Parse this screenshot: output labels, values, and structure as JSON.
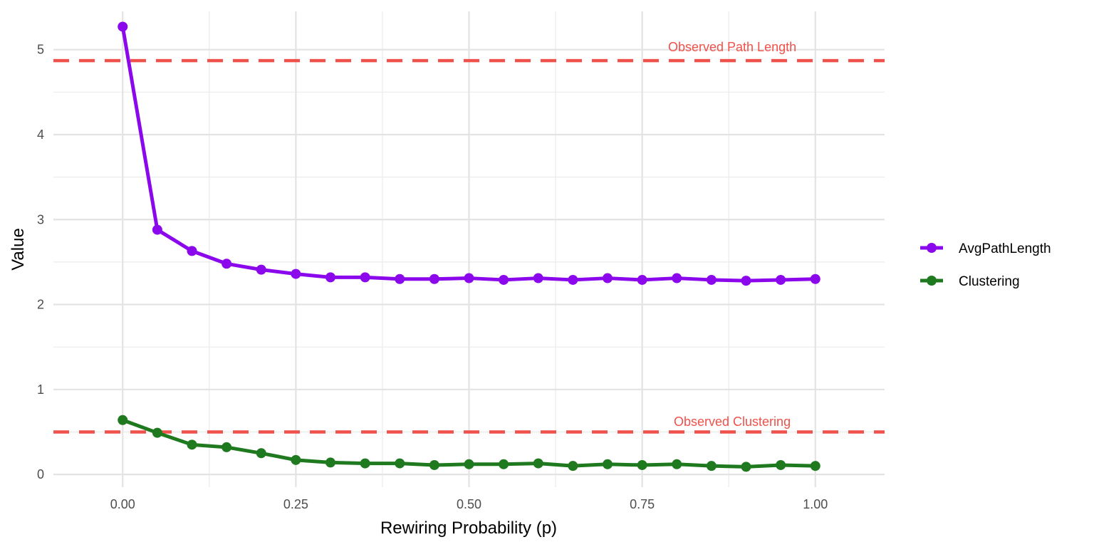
{
  "chart_data": {
    "type": "line",
    "xlabel": "Rewiring Probability (p)",
    "ylabel": "Value",
    "xlim": [
      -0.1,
      1.1
    ],
    "ylim": [
      -0.15,
      5.45
    ],
    "x_ticks": [
      0,
      0.25,
      0.5,
      0.75,
      1.0
    ],
    "x_tick_labels": [
      "0.00",
      "0.25",
      "0.50",
      "0.75",
      "1.00"
    ],
    "y_ticks": [
      0,
      1,
      2,
      3,
      4,
      5
    ],
    "y_tick_labels": [
      "0",
      "1",
      "2",
      "3",
      "4",
      "5"
    ],
    "grid": true,
    "legend_position": "right",
    "x": [
      0,
      0.05,
      0.1,
      0.15,
      0.2,
      0.25,
      0.3,
      0.35,
      0.4,
      0.45,
      0.5,
      0.55,
      0.6,
      0.65,
      0.7,
      0.75,
      0.8,
      0.85,
      0.9,
      0.95,
      1.0
    ],
    "series": [
      {
        "name": "AvgPathLength",
        "color": "#8b08ec",
        "values": [
          5.27,
          2.88,
          2.63,
          2.48,
          2.41,
          2.36,
          2.32,
          2.32,
          2.3,
          2.3,
          2.31,
          2.29,
          2.31,
          2.29,
          2.31,
          2.29,
          2.31,
          2.29,
          2.28,
          2.29,
          2.3
        ]
      },
      {
        "name": "Clustering",
        "color": "#1f7a1f",
        "values": [
          0.64,
          0.49,
          0.35,
          0.32,
          0.25,
          0.17,
          0.14,
          0.13,
          0.13,
          0.11,
          0.12,
          0.12,
          0.13,
          0.1,
          0.12,
          0.11,
          0.12,
          0.1,
          0.09,
          0.11,
          0.1
        ]
      }
    ],
    "reference_lines": [
      {
        "y": 4.87,
        "color": "#f0514a",
        "label": "Observed Path Length",
        "label_x": 0.88,
        "label_y": 5.03
      },
      {
        "y": 0.5,
        "color": "#f0514a",
        "label": "Observed Clustering",
        "label_x": 0.88,
        "label_y": 0.62
      }
    ]
  }
}
